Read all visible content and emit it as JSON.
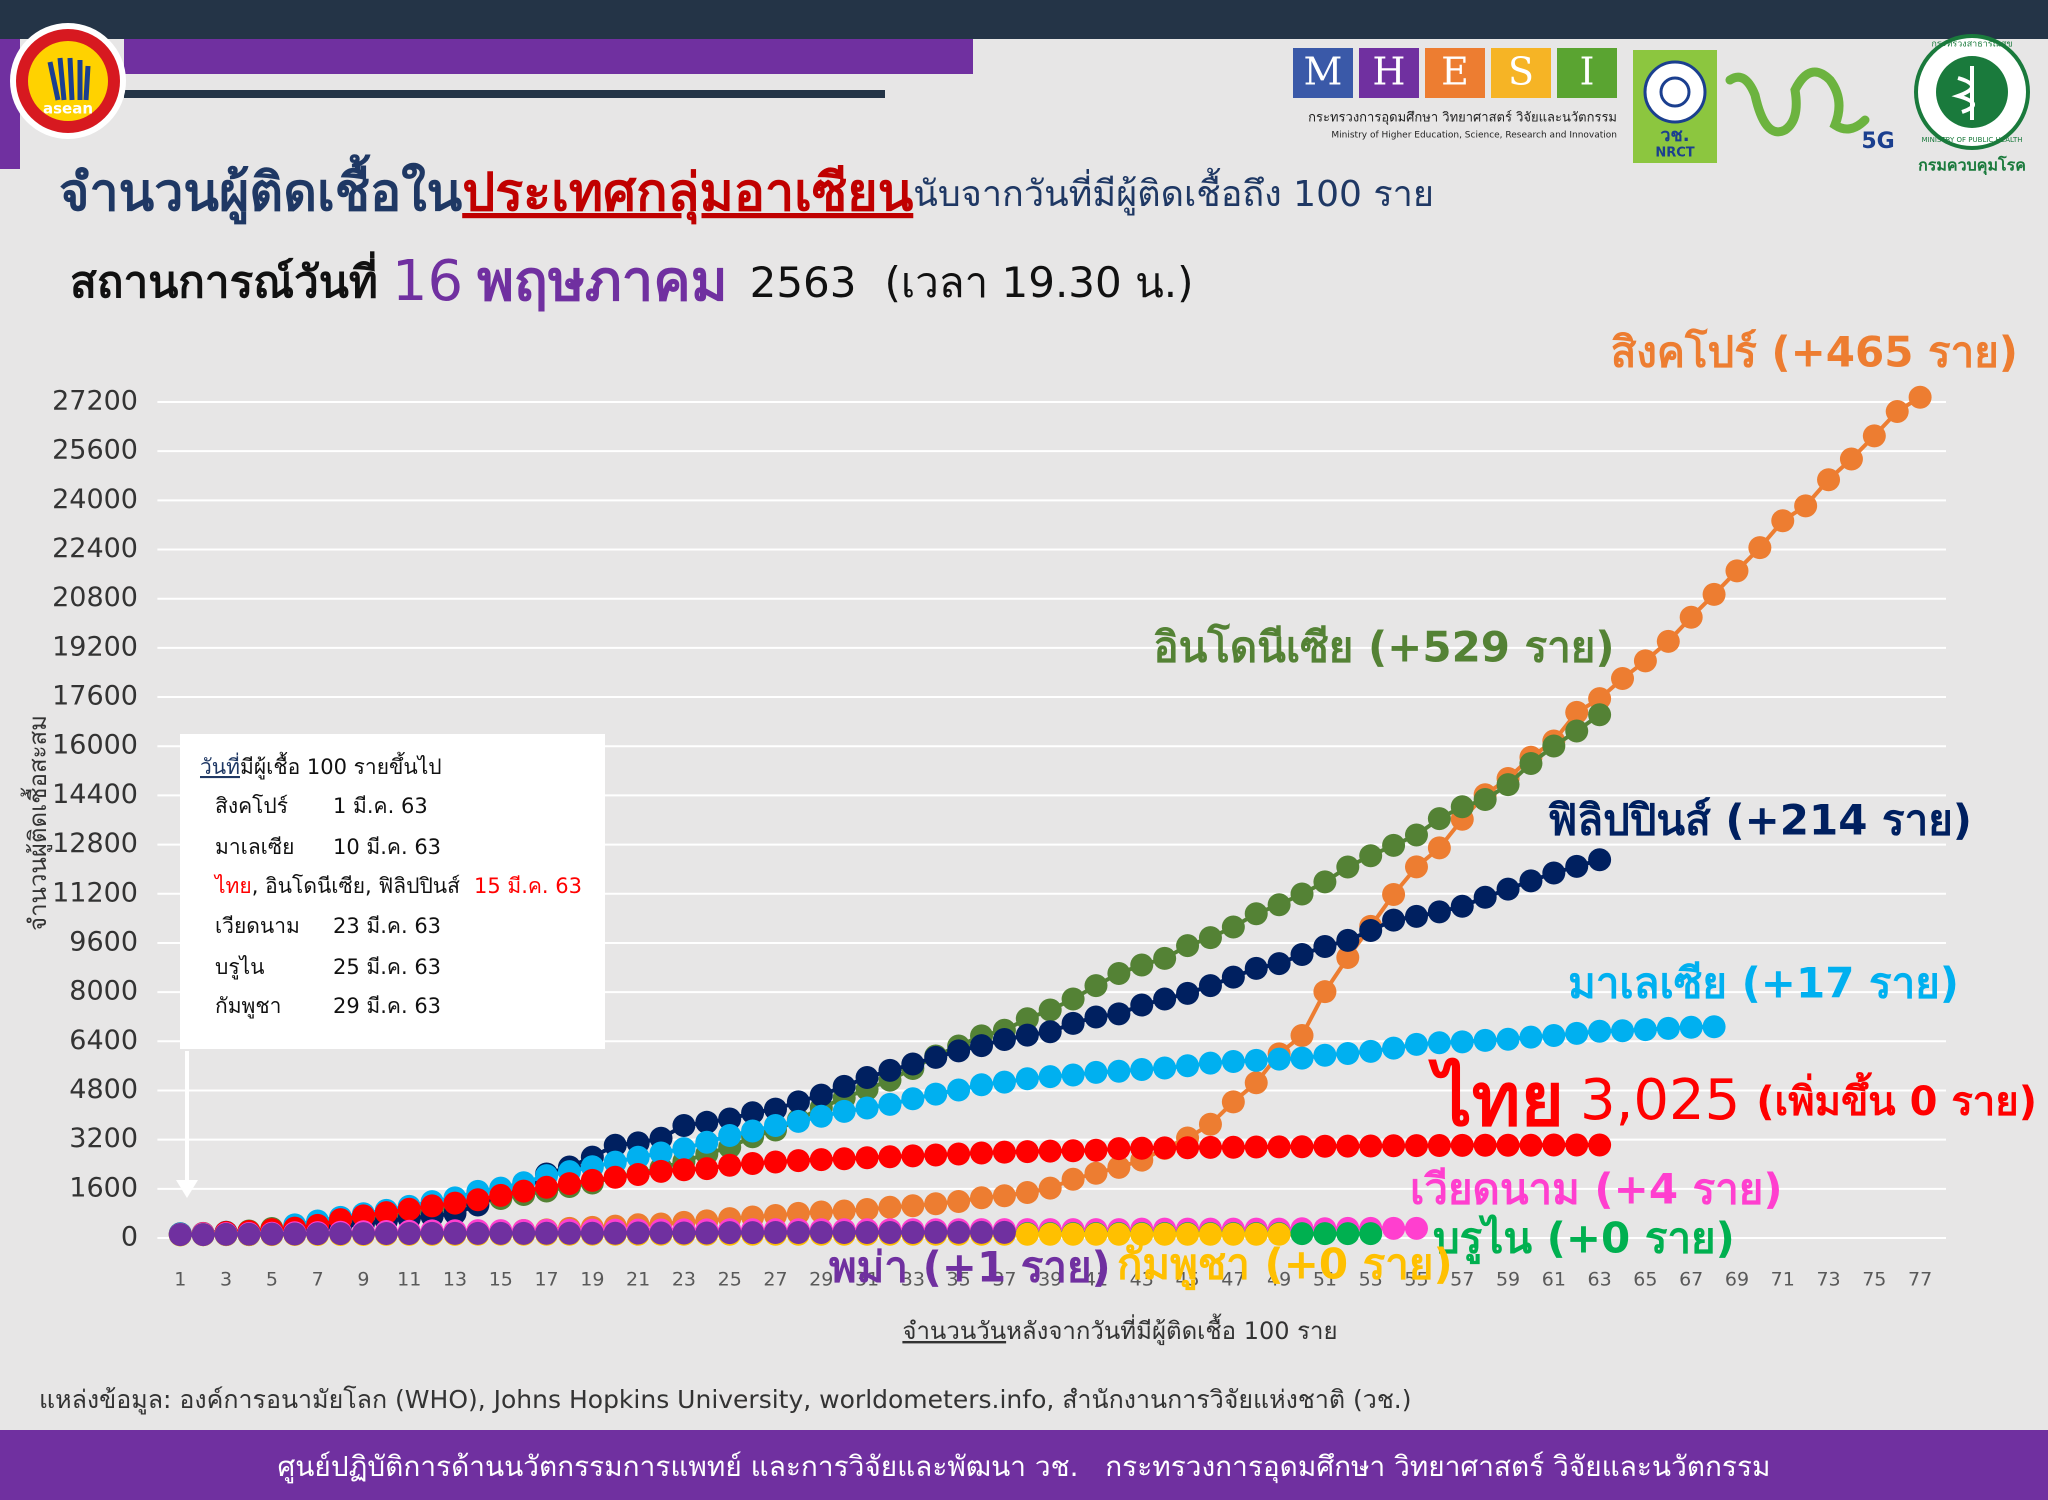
{
  "header": {
    "title_1": "จำนวนผู้ติดเชื้อใน",
    "title_2": "ประเทศกลุ่มอาเซียน",
    "title_3": "นับจากวันที่มีผู้ติดเชื้อถึง 100 ราย",
    "subtitle_1": "สถานการณ์วันที่",
    "subtitle_day": "16",
    "subtitle_month": "พฤษภาคม",
    "subtitle_year": "2563",
    "subtitle_time": "(เวลา 19.30 น.)"
  },
  "logos": {
    "asean": "asean",
    "mhesi": {
      "letters": [
        "M",
        "H",
        "E",
        "S",
        "I"
      ],
      "name_th": "กระทรวงการอุดมศึกษา วิทยาศาสตร์ วิจัยและนวัตกรรม",
      "name_en": "Ministry of Higher Education, Science, Research and Innovation"
    },
    "nrct": {
      "th": "วช.",
      "en": "NRCT"
    },
    "fiveg": "5G",
    "ddc": {
      "ring_th": "กระทรวงสาธารณสุข",
      "ring_en": "MINISTRY OF PUBLIC HEALTH",
      "name": "กรมควบคุมโรค"
    }
  },
  "chart_data": {
    "type": "line",
    "y_label": "จำนวนผู้ติดเชื้อสะสม",
    "x_label": {
      "underlined": "จำนวนวัน",
      "rest": "หลังจากวันที่มีผู้ติดเชื้อ 100 ราย"
    },
    "x": [
      1,
      2,
      3,
      4,
      5,
      6,
      7,
      8,
      9,
      10,
      11,
      12,
      13,
      14,
      15,
      16,
      17,
      18,
      19,
      20,
      21,
      22,
      23,
      24,
      25,
      26,
      27,
      28,
      29,
      30,
      31,
      32,
      33,
      34,
      35,
      36,
      37,
      38,
      39,
      40,
      41,
      42,
      43,
      44,
      45,
      46,
      47,
      48,
      49,
      50,
      51,
      52,
      53,
      54,
      55,
      56,
      57,
      58,
      59,
      60,
      61,
      62,
      63,
      64,
      65,
      66,
      67,
      68,
      69,
      70,
      71,
      72,
      73,
      74,
      75,
      76,
      77
    ],
    "xlim": [
      0,
      78
    ],
    "xticks": [
      1,
      3,
      5,
      7,
      9,
      11,
      13,
      15,
      17,
      19,
      21,
      23,
      25,
      27,
      29,
      31,
      33,
      35,
      37,
      39,
      41,
      43,
      45,
      47,
      49,
      51,
      53,
      55,
      57,
      59,
      61,
      63,
      65,
      67,
      69,
      71,
      73,
      75,
      77
    ],
    "ylim": [
      0,
      27200
    ],
    "yticks": [
      0,
      1600,
      3200,
      4800,
      6400,
      8000,
      9600,
      11200,
      12800,
      14400,
      16000,
      17600,
      19200,
      20800,
      22400,
      24000,
      25600,
      27200
    ],
    "grid": true,
    "series": [
      {
        "name": "สิงคโปร์ (+465 ราย)",
        "color": "#ED7D31",
        "values": [
          106,
          108,
          110,
          110,
          117,
          130,
          138,
          150,
          150,
          160,
          178,
          187,
          200,
          212,
          226,
          243,
          266,
          313,
          345,
          385,
          432,
          455,
          509,
          558,
          631,
          683,
          732,
          802,
          844,
          879,
          926,
          1000,
          1049,
          1114,
          1189,
          1309,
          1375,
          1481,
          1623,
          1910,
          2108,
          2299,
          2532,
          2918,
          3252,
          3699,
          4427,
          5050,
          5992,
          6588,
          8014,
          9125,
          10141,
          11178,
          12075,
          12693,
          13624,
          14423,
          14951,
          15641,
          16169,
          17101,
          17548,
          18205,
          18778,
          19410,
          20198,
          20939,
          21707,
          22460,
          23336,
          23822,
          24671,
          25346,
          26098,
          26891,
          27356
        ]
      },
      {
        "name": "อินโดนีเซีย (+529 ราย)",
        "color": "#548235",
        "values": [
          117,
          134,
          172,
          227,
          309,
          369,
          450,
          514,
          579,
          686,
          790,
          893,
          1046,
          1155,
          1285,
          1414,
          1528,
          1677,
          1790,
          1986,
          2092,
          2273,
          2491,
          2738,
          2956,
          3293,
          3512,
          3842,
          4241,
          4557,
          4839,
          5136,
          5516,
          5923,
          6248,
          6575,
          6760,
          7135,
          7418,
          7775,
          8211,
          8607,
          8882,
          9096,
          9511,
          9771,
          10118,
          10551,
          10843,
          11192,
          11587,
          12071,
          12438,
          12776,
          13112,
          13645,
          14032,
          14265,
          14749,
          15438,
          16006,
          16496,
          17025,
          null,
          null,
          null,
          null,
          null,
          null,
          null,
          null,
          null,
          null,
          null,
          null,
          null,
          null
        ]
      },
      {
        "name": "ฟิลิปปินส์ (+214 ราย)",
        "color": "#002060",
        "values": [
          140,
          142,
          187,
          202,
          217,
          230,
          307,
          380,
          462,
          552,
          636,
          707,
          803,
          1075,
          1418,
          1546,
          2084,
          2311,
          2633,
          3018,
          3094,
          3246,
          3660,
          3764,
          3870,
          4076,
          4195,
          4428,
          4648,
          4932,
          5223,
          5453,
          5660,
          5878,
          6087,
          6259,
          6459,
          6599,
          6710,
          6981,
          7192,
          7294,
          7579,
          7777,
          7958,
          8212,
          8488,
          8772,
          8928,
          9223,
          9485,
          9684,
          10004,
          10343,
          10463,
          10610,
          10794,
          11086,
          11350,
          11618,
          11876,
          12091,
          12305,
          null,
          null,
          null,
          null,
          null,
          null,
          null,
          null,
          null,
          null,
          null,
          null,
          null,
          null
        ]
      },
      {
        "name": "มาเลเซีย (+17 ราย)",
        "color": "#00B0F0",
        "values": [
          129,
          149,
          158,
          197,
          238,
          428,
          553,
          673,
          790,
          900,
          1030,
          1183,
          1306,
          1518,
          1624,
          1796,
          2031,
          2161,
          2320,
          2470,
          2626,
          2766,
          2908,
          3116,
          3333,
          3483,
          3662,
          3793,
          3963,
          4119,
          4228,
          4346,
          4530,
          4683,
          4817,
          4987,
          5072,
          5182,
          5251,
          5305,
          5389,
          5425,
          5482,
          5532,
          5603,
          5691,
          5742,
          5780,
          5820,
          5851,
          5945,
          6002,
          6071,
          6176,
          6298,
          6353,
          6383,
          6428,
          6467,
          6535,
          6589,
          6656,
          6726,
          6742,
          6779,
          6819,
          6855,
          6872,
          null,
          null,
          null,
          null,
          null,
          null,
          null,
          null,
          null
        ]
      },
      {
        "name": "ไทย",
        "last_value_label": "3,025",
        "note": "(เพิ่มขึ้น 0 ราย)",
        "color": "#FF0000",
        "values": [
          114,
          147,
          177,
          212,
          272,
          322,
          411,
          599,
          721,
          827,
          934,
          1045,
          1136,
          1245,
          1388,
          1524,
          1651,
          1771,
          1875,
          1978,
          2067,
          2169,
          2220,
          2258,
          2369,
          2423,
          2473,
          2518,
          2551,
          2579,
          2613,
          2643,
          2672,
          2700,
          2733,
          2765,
          2792,
          2811,
          2826,
          2839,
          2854,
          2907,
          2922,
          2931,
          2938,
          2947,
          2954,
          2960,
          2966,
          2969,
          2987,
          2989,
          2992,
          3000,
          3004,
          3009,
          3015,
          3017,
          3017,
          3018,
          3025,
          3025,
          3025,
          null,
          null,
          null,
          null,
          null,
          null,
          null,
          null,
          null,
          null,
          null,
          null,
          null,
          null
        ]
      },
      {
        "name": "เวียดนาม (+4 ราย)",
        "color": "#FF3FCF",
        "values": [
          113,
          134,
          141,
          148,
          153,
          169,
          174,
          188,
          203,
          212,
          218,
          233,
          237,
          240,
          241,
          245,
          249,
          251,
          255,
          257,
          258,
          262,
          265,
          266,
          267,
          268,
          268,
          268,
          268,
          268,
          270,
          270,
          270,
          270,
          270,
          271,
          271,
          271,
          271,
          271,
          271,
          271,
          288,
          288,
          288,
          288,
          288,
          288,
          288,
          300,
          300,
          312,
          312,
          314,
          314,
          null,
          null,
          null,
          null,
          null,
          null,
          null,
          null,
          null,
          null,
          null,
          null,
          null,
          null,
          null,
          null,
          null,
          null,
          null,
          null,
          null,
          null
        ]
      },
      {
        "name": "บรูไน (+0 ราย)",
        "color": "#00B050",
        "values": [
          104,
          109,
          114,
          115,
          120,
          126,
          127,
          129,
          131,
          133,
          134,
          135,
          135,
          135,
          135,
          136,
          136,
          136,
          136,
          136,
          136,
          136,
          137,
          138,
          138,
          138,
          138,
          138,
          138,
          138,
          138,
          138,
          138,
          138,
          138,
          138,
          141,
          141,
          141,
          141,
          141,
          141,
          141,
          141,
          141,
          141,
          141,
          141,
          141,
          141,
          141,
          141,
          141,
          null,
          null,
          null,
          null,
          null,
          null,
          null,
          null,
          null,
          null,
          null,
          null,
          null,
          null,
          null,
          null,
          null,
          null,
          null,
          null,
          null,
          null,
          null,
          null
        ]
      },
      {
        "name": "กัมพูชา (+0 ราย)",
        "color": "#FFC000",
        "values": [
          103,
          107,
          109,
          109,
          110,
          114,
          114,
          114,
          115,
          117,
          117,
          117,
          119,
          120,
          122,
          122,
          122,
          122,
          122,
          122,
          122,
          122,
          122,
          122,
          122,
          122,
          122,
          122,
          122,
          122,
          122,
          122,
          122,
          122,
          122,
          122,
          122,
          122,
          122,
          122,
          122,
          122,
          122,
          122,
          122,
          122,
          122,
          122,
          122,
          null,
          null,
          null,
          null,
          null,
          null,
          null,
          null,
          null,
          null,
          null,
          null,
          null,
          null,
          null,
          null,
          null,
          null,
          null,
          null,
          null,
          null,
          null,
          null,
          null,
          null,
          null,
          null
        ]
      },
      {
        "name": "พม่า (+1 ราย)",
        "color": "#7030A0",
        "values": [
          110,
          111,
          119,
          121,
          127,
          132,
          139,
          144,
          144,
          146,
          146,
          150,
          151,
          151,
          151,
          151,
          155,
          155,
          155,
          155,
          161,
          161,
          161,
          162,
          176,
          176,
          177,
          178,
          178,
          180,
          180,
          180,
          180,
          181,
          181,
          181,
          182,
          null,
          null,
          null,
          null,
          null,
          null,
          null,
          null,
          null,
          null,
          null,
          null,
          null,
          null,
          null,
          null,
          null,
          null,
          null,
          null,
          null,
          null,
          null,
          null,
          null,
          null,
          null,
          null,
          null,
          null,
          null,
          null,
          null,
          null,
          null,
          null,
          null,
          null,
          null,
          null
        ]
      }
    ],
    "info_box": {
      "title_underlined": "วันที่",
      "title": "มีผู้เชื้อ 100 รายขึ้นไป",
      "rows": [
        {
          "name": "สิงคโปร์",
          "date": "1 มี.ค. 63"
        },
        {
          "name": "มาเลเซีย",
          "date": "10 มี.ค. 63"
        },
        {
          "name_highlight": "ไทย",
          "name": ", อินโดนีเซีย, ฟิลิปปินส์",
          "date": "15 มี.ค. 63",
          "highlight_color": "#FF0000"
        },
        {
          "name": "เวียดนาม",
          "date": "23 มี.ค. 63"
        },
        {
          "name": "บรูไน",
          "date": "25 มี.ค. 63"
        },
        {
          "name": "กัมพูชา",
          "date": "29 มี.ค. 63"
        }
      ]
    }
  },
  "source": "แหล่งข้อมูล: องค์การอนามัยโลก (WHO), Johns Hopkins University, worldometers.info, สำนักงานการวิจัยแห่งชาติ (วช.)",
  "footer": "ศูนย์ปฏิบัติการด้านนวัตกรรมการแพทย์ และการวิจัยและพัฒนา วช.   กระทรวงการอุดมศึกษา วิทยาศาสตร์ วิจัยและนวัตกรรม"
}
